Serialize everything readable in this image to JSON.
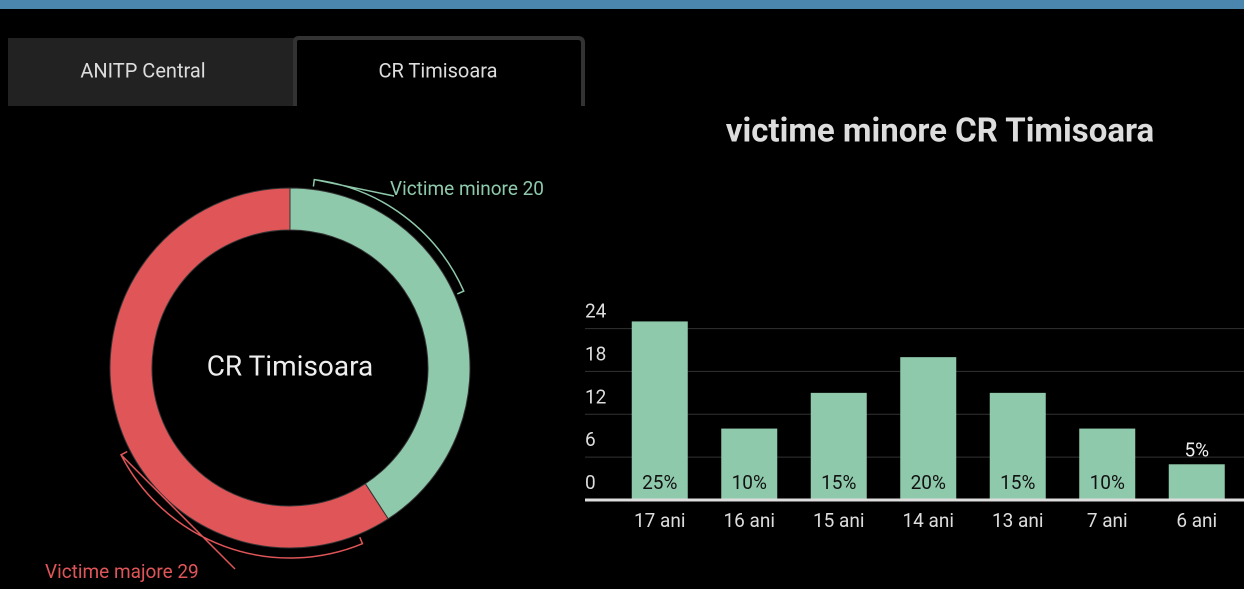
{
  "tabs": [
    "ANITP Central",
    "CR Timisoara"
  ],
  "chart_data": [
    {
      "type": "donut",
      "center_label": "CR Timisoara",
      "categories": [
        "Victime minore",
        "Victime majore"
      ],
      "values": [
        20,
        29
      ],
      "value_labels": [
        "Victime minore 20",
        "Victime majore 29"
      ],
      "colors": [
        "#8fc9ab",
        "#e05558"
      ]
    },
    {
      "type": "bar",
      "title": "victime minore  CR Timisoara",
      "categories": [
        "17 ani",
        "16 ani",
        "15 ani",
        "14 ani",
        "13 ani",
        "7 ani",
        "6 ani"
      ],
      "values": [
        25,
        10,
        15,
        20,
        15,
        10,
        5
      ],
      "value_labels": [
        "25%",
        "10%",
        "15%",
        "20%",
        "15%",
        "10%",
        "5%"
      ],
      "color": "#8fc9ab",
      "ylim": [
        0,
        28
      ],
      "yticks": [
        0,
        6,
        12,
        18,
        24
      ],
      "grid": true
    }
  ]
}
